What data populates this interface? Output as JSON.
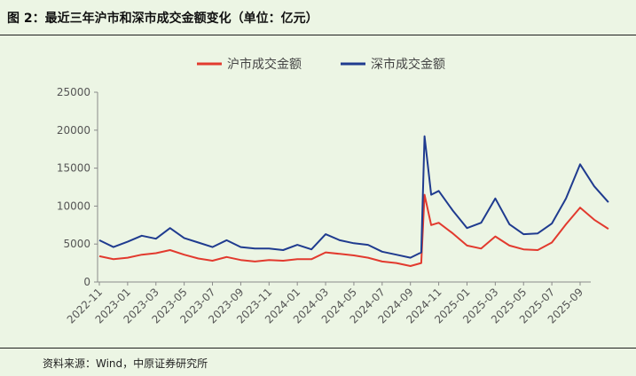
{
  "title": "图 2：最近三年沪市和深市成交金额变化（单位：亿元）",
  "source": "资料来源：Wind，中原证券研究所",
  "chart_data": {
    "type": "line",
    "title": "",
    "xlabel": "",
    "ylabel": "",
    "ylim": [
      0,
      25000
    ],
    "yticks": [
      0,
      5000,
      10000,
      15000,
      20000,
      25000
    ],
    "xticks": [
      "2022-11",
      "2023-01",
      "2023-03",
      "2023-05",
      "2023-07",
      "2023-09",
      "2023-11",
      "2024-01",
      "2024-03",
      "2024-05",
      "2024-07",
      "2024-09",
      "2024-11",
      "2025-01",
      "2025-03",
      "2025-05",
      "2025-07",
      "2025-09"
    ],
    "grid": false,
    "legend": "top-center",
    "x": [
      "2022-11",
      "2022-12",
      "2023-01",
      "2023-02",
      "2023-03",
      "2023-04",
      "2023-05",
      "2023-06",
      "2023-07",
      "2023-08",
      "2023-09",
      "2023-10",
      "2023-11",
      "2023-12",
      "2024-01",
      "2024-02",
      "2024-03",
      "2024-04",
      "2024-05",
      "2024-06",
      "2024-07",
      "2024-08",
      "2024-09",
      "2024-09-24",
      "2024-10",
      "2024-10-15",
      "2024-11",
      "2024-12",
      "2025-01",
      "2025-02",
      "2025-03",
      "2025-04",
      "2025-05",
      "2025-06",
      "2025-07",
      "2025-08",
      "2025-09",
      "2025-10",
      "2025-11"
    ],
    "series": [
      {
        "name": "沪市成交金额",
        "color": "#E23A2E",
        "values": [
          3400,
          3000,
          3200,
          3600,
          3800,
          4200,
          3600,
          3100,
          2800,
          3300,
          2900,
          2700,
          2900,
          2800,
          3000,
          3000,
          3900,
          3700,
          3500,
          3200,
          2700,
          2500,
          2100,
          2500,
          11500,
          7500,
          7800,
          6400,
          4800,
          4400,
          6000,
          4800,
          4300,
          4200,
          5200,
          7600,
          9800,
          8200,
          7000
        ]
      },
      {
        "name": "深市成交金额",
        "color": "#1F3B8F",
        "values": [
          5500,
          4600,
          5300,
          6100,
          5700,
          7100,
          5800,
          5200,
          4600,
          5500,
          4600,
          4400,
          4400,
          4200,
          4900,
          4300,
          6300,
          5500,
          5100,
          4900,
          4000,
          3600,
          3200,
          3900,
          19200,
          11500,
          12000,
          9400,
          7100,
          7800,
          11000,
          7600,
          6300,
          6400,
          7700,
          11000,
          15500,
          12600,
          10500
        ]
      }
    ]
  }
}
